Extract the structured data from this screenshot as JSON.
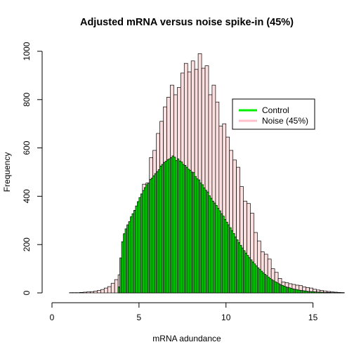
{
  "chart_data": {
    "type": "histogram",
    "title": "Adjusted mRNA versus noise spike-in (45%)",
    "xlabel": "mRNA adundance",
    "ylabel": "Frequency",
    "xlim": [
      0,
      15.5
    ],
    "ylim": [
      0,
      1000
    ],
    "x_ticks": [
      "0",
      "5",
      "10",
      "15"
    ],
    "y_ticks": [
      "0",
      "200",
      "400",
      "600",
      "800",
      "1000"
    ],
    "grid": false,
    "legend_position": "top-right",
    "legend": [
      {
        "label": "Control",
        "color": "#00ee00"
      },
      {
        "label": "Noise (45%)",
        "color": "#ffc0cb"
      }
    ],
    "series": [
      {
        "name": "Noise (45%)",
        "fill": "#ffe0e0",
        "bin_start": 1.0,
        "bin_width": 0.2,
        "counts": [
          1,
          1,
          1,
          2,
          3,
          4,
          5,
          7,
          10,
          14,
          20,
          26,
          40,
          55,
          75,
          110,
          150,
          180,
          230,
          290,
          360,
          450,
          455,
          560,
          590,
          660,
          710,
          770,
          810,
          860,
          820,
          850,
          910,
          950,
          915,
          960,
          925,
          990,
          930,
          940,
          820,
          860,
          790,
          690,
          700,
          645,
          590,
          550,
          520,
          440,
          380,
          370,
          330,
          250,
          215,
          170,
          160,
          140,
          100,
          85,
          60,
          45,
          42,
          38,
          35,
          32,
          30,
          25,
          22,
          20,
          15,
          12,
          10,
          8,
          6,
          4,
          3,
          2,
          1
        ]
      },
      {
        "name": "Control",
        "fill": "#00dd00",
        "bin_start": 3.8,
        "bin_width": 0.1,
        "counts": [
          25,
          145,
          212,
          245,
          265,
          282,
          295,
          315,
          328,
          342,
          360,
          378,
          395,
          410,
          424,
          436,
          448,
          455,
          470,
          475,
          485,
          494,
          502,
          510,
          525,
          532,
          540,
          545,
          551,
          555,
          560,
          567,
          562,
          548,
          555,
          546,
          542,
          532,
          528,
          520,
          512,
          508,
          500,
          498,
          482,
          472,
          468,
          455,
          448,
          435,
          425,
          418,
          402,
          392,
          380,
          372,
          362,
          350,
          340,
          328,
          318,
          304,
          293,
          282,
          270,
          258,
          246,
          232,
          220,
          208,
          197,
          186,
          175,
          165,
          155,
          146,
          137,
          128,
          120,
          112,
          104,
          97,
          90,
          83,
          77,
          71,
          65,
          60,
          55,
          50,
          46,
          42,
          38,
          34,
          31,
          28,
          25,
          23,
          21,
          19,
          17,
          15,
          14,
          12,
          11,
          10,
          9,
          8,
          7,
          6,
          6,
          5,
          5,
          4,
          4,
          3,
          3,
          3,
          2,
          2,
          2,
          2,
          1,
          1,
          1,
          1,
          1,
          1,
          1,
          1
        ]
      }
    ]
  }
}
